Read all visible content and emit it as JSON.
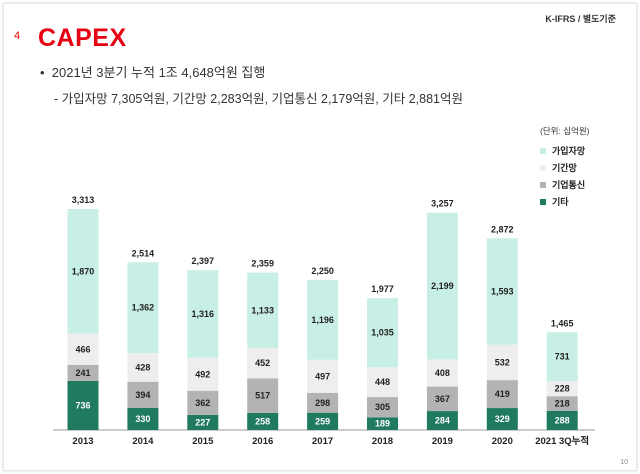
{
  "header": {
    "standard": "K-IFRS / 별도기준",
    "section_number": "4",
    "title": "CAPEX"
  },
  "bullets": {
    "main": "2021년 3분기 누적 1조 4,648억원 집행",
    "sub": "- 가입자망 7,305억원, 기간망 2,283억원, 기업통신 2,179억원, 기타 2,881억원"
  },
  "page_number": "10",
  "chart_data": {
    "type": "bar",
    "stacked": true,
    "unit_label": "(단위: 십억원)",
    "categories": [
      "2013",
      "2014",
      "2015",
      "2016",
      "2017",
      "2018",
      "2019",
      "2020",
      "2021 3Q누적"
    ],
    "series": [
      {
        "name": "기타",
        "color": "#1f7a60",
        "label_color": "#ffffff",
        "values": [
          736,
          330,
          227,
          258,
          259,
          189,
          284,
          329,
          288
        ]
      },
      {
        "name": "기업통신",
        "color": "#b3b3b3",
        "label_color": "#222222",
        "values": [
          241,
          394,
          362,
          517,
          298,
          305,
          367,
          419,
          218
        ]
      },
      {
        "name": "기간망",
        "color": "#eeeeee",
        "label_color": "#222222",
        "values": [
          466,
          428,
          492,
          452,
          497,
          448,
          408,
          532,
          228
        ]
      },
      {
        "name": "가입자망",
        "color": "#c8efe5",
        "label_color": "#222222",
        "values": [
          1870,
          1362,
          1316,
          1133,
          1196,
          1035,
          2199,
          1593,
          731
        ]
      }
    ],
    "totals": [
      "3,313",
      "2,514",
      "2,397",
      "2,359",
      "2,250",
      "1,977",
      "3,257",
      "2,872",
      "1,465"
    ],
    "legend_order": [
      "가입자망",
      "기간망",
      "기업통신",
      "기타"
    ],
    "legend_placement": "right",
    "ylim": [
      0,
      3313
    ],
    "grid": false
  }
}
